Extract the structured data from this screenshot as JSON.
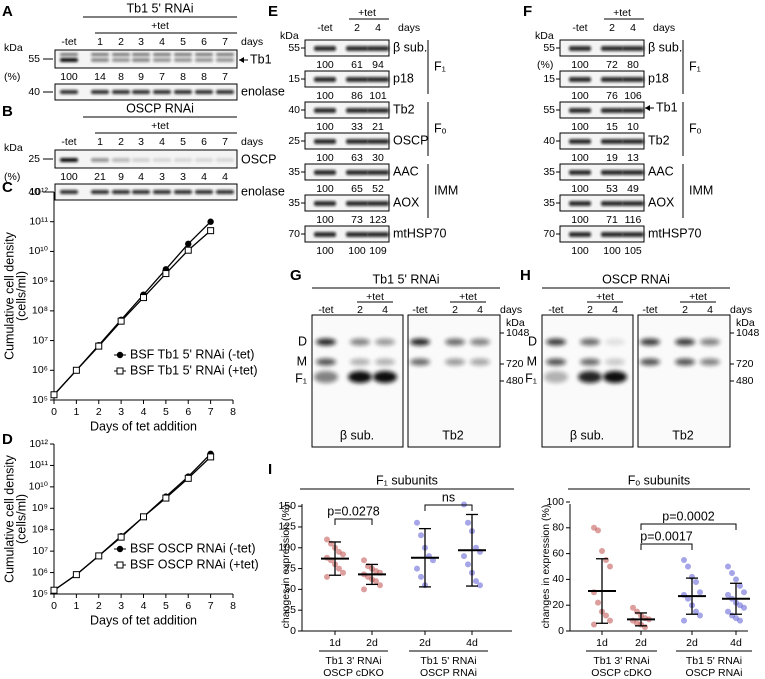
{
  "panel_a": {
    "letter": "A",
    "title": "Tb1 5' RNAi",
    "tet": "+tet",
    "lanes": [
      "-tet",
      "1",
      "2",
      "3",
      "4",
      "5",
      "6",
      "7"
    ],
    "days": "days",
    "kda": "kDa",
    "target": {
      "marker": "55",
      "label": "Tb1",
      "arrow": true
    },
    "pct_label": "(%)",
    "pct": [
      100,
      14,
      8,
      9,
      7,
      8,
      8,
      7
    ],
    "loading": {
      "marker": "40",
      "label": "enolase"
    }
  },
  "panel_b": {
    "letter": "B",
    "title": "OSCP RNAi",
    "tet": "+tet",
    "lanes": [
      "-tet",
      "1",
      "2",
      "3",
      "4",
      "5",
      "6",
      "7"
    ],
    "days": "days",
    "kda": "kDa",
    "target": {
      "marker": "25",
      "label": "OSCP",
      "arrow": false
    },
    "pct_label": "(%)",
    "pct": [
      100,
      21,
      9,
      4,
      3,
      3,
      4,
      4
    ],
    "loading": {
      "marker": "40",
      "label": "enolase"
    }
  },
  "panel_e": {
    "letter": "E",
    "tet": "+tet",
    "lanes": [
      "-tet",
      "2",
      "4"
    ],
    "days": "days",
    "kda": "kDa",
    "rows": [
      {
        "marker": "55",
        "label": "β sub.",
        "pct": [
          100,
          61,
          94
        ]
      },
      {
        "marker": "15",
        "label": "p18",
        "pct": [
          100,
          86,
          101
        ]
      },
      {
        "marker": "40",
        "label": "Tb2",
        "pct": [
          100,
          33,
          21
        ]
      },
      {
        "marker": "25",
        "label": "OSCP",
        "pct": [
          100,
          63,
          30
        ]
      },
      {
        "marker": "35",
        "label": "AAC",
        "pct": [
          100,
          65,
          52
        ]
      },
      {
        "marker": "35",
        "label": "AOX",
        "pct": [
          100,
          73,
          123
        ]
      },
      {
        "marker": "70",
        "label": "mtHSP70",
        "pct": [
          100,
          100,
          109
        ]
      }
    ],
    "groups": [
      "F₁",
      "Fₒ",
      "IMM"
    ]
  },
  "panel_f": {
    "letter": "F",
    "tet": "+tet",
    "lanes": [
      "-tet",
      "2",
      "4"
    ],
    "days": "days",
    "kda": "kDa",
    "pct_label": "(%)",
    "rows": [
      {
        "marker": "55",
        "label": "β sub.",
        "pct": [
          100,
          72,
          80
        ]
      },
      {
        "marker": "15",
        "label": "p18",
        "pct": [
          100,
          76,
          106
        ]
      },
      {
        "marker": "55",
        "label": "Tb1",
        "pct": [
          100,
          15,
          10
        ],
        "arrow": true
      },
      {
        "marker": "40",
        "label": "Tb2",
        "pct": [
          100,
          19,
          13
        ]
      },
      {
        "marker": "35",
        "label": "AAC",
        "pct": [
          100,
          53,
          49
        ]
      },
      {
        "marker": "35",
        "label": "AOX",
        "pct": [
          100,
          71,
          116
        ]
      },
      {
        "marker": "70",
        "label": "mtHSP70",
        "pct": [
          100,
          100,
          105
        ]
      }
    ],
    "groups": [
      "F₁",
      "Fₒ",
      "IMM"
    ]
  },
  "panel_g": {
    "letter": "G",
    "title": "Tb1 5' RNAi",
    "tet": [
      "+tet",
      "+tet"
    ],
    "lanes": [
      [
        "-tet",
        "2",
        "4"
      ],
      [
        "-tet",
        "2",
        "4"
      ]
    ],
    "days": "days",
    "kda": "kDa",
    "markers": [
      "1048",
      "720",
      "480"
    ],
    "complexes": [
      "D",
      "M",
      "F₁"
    ],
    "probes": [
      "β sub.",
      "Tb2"
    ]
  },
  "panel_h": {
    "letter": "H",
    "title": "OSCP RNAi",
    "tet": [
      "+tet",
      "+tet"
    ],
    "lanes": [
      [
        "-tet",
        "2",
        "4"
      ],
      [
        "-tet",
        "2",
        "4"
      ]
    ],
    "days": "days",
    "kda": "kDa",
    "markers": [
      "1048",
      "720",
      "480"
    ],
    "complexes": [
      "D",
      "M",
      "F₁"
    ],
    "probes": [
      "β sub.",
      "Tb2"
    ]
  },
  "chart_data": [
    {
      "type": "line",
      "letter": "C",
      "ylabel": [
        "Cumulative cell density",
        "(cells/ml)"
      ],
      "xlabel": "Days of tet addition",
      "x": [
        0,
        1,
        2,
        3,
        4,
        5,
        6,
        7
      ],
      "xlim": [
        0,
        8
      ],
      "xticks": [
        0,
        1,
        2,
        3,
        4,
        5,
        6,
        7,
        8
      ],
      "log_y": true,
      "ylim": [
        100000,
        1000000000000
      ],
      "yticks": [
        {
          "value": 100000,
          "label": "10⁵"
        },
        {
          "value": 1000000,
          "label": "10⁶"
        },
        {
          "value": 10000000,
          "label": "10⁷"
        },
        {
          "value": 100000000,
          "label": "10⁸"
        },
        {
          "value": 1000000000,
          "label": "10⁹"
        },
        {
          "value": 10000000000,
          "label": "10¹⁰"
        },
        {
          "value": 100000000000,
          "label": "10¹¹"
        },
        {
          "value": 1000000000000,
          "label": "10¹²"
        }
      ],
      "legend": "lower right",
      "series": [
        {
          "name": "BSF Tb1 5' RNAi (-tet)",
          "color": "#000000",
          "marker": "filled-circle",
          "values": [
            150000,
            1000000,
            7000000,
            50000000,
            350000000,
            2500000000,
            18000000000,
            100000000000
          ]
        },
        {
          "name": "BSF Tb1 5' RNAi (+tet)",
          "color": "#000000",
          "marker": "open-square",
          "values": [
            150000,
            1000000,
            6500000,
            45000000,
            280000000,
            1800000000,
            11000000000,
            50000000000
          ]
        }
      ]
    },
    {
      "type": "line",
      "letter": "D",
      "ylabel": [
        "Cumulative cell density",
        "(cells/ml)"
      ],
      "xlabel": "Days of tet addition",
      "x": [
        0,
        1,
        2,
        3,
        4,
        5,
        6,
        7
      ],
      "xlim": [
        0,
        8
      ],
      "xticks": [
        0,
        1,
        2,
        3,
        4,
        5,
        6,
        7,
        8
      ],
      "log_y": true,
      "ylim": [
        100000,
        1000000000000
      ],
      "yticks": [
        {
          "value": 100000,
          "label": "10⁵"
        },
        {
          "value": 1000000,
          "label": "10⁶"
        },
        {
          "value": 10000000,
          "label": "10⁷"
        },
        {
          "value": 100000000,
          "label": "10⁸"
        },
        {
          "value": 1000000000,
          "label": "10⁹"
        },
        {
          "value": 10000000000,
          "label": "10¹⁰"
        },
        {
          "value": 100000000000,
          "label": "10¹¹"
        },
        {
          "value": 1000000000000,
          "label": "10¹²"
        }
      ],
      "legend": "lower right",
      "series": [
        {
          "name": "BSF OSCP RNAi (-tet)",
          "color": "#000000",
          "marker": "filled-circle",
          "values": [
            150000,
            800000,
            6000000,
            50000000,
            400000000,
            3500000000,
            30000000000,
            350000000000
          ]
        },
        {
          "name": "BSF OSCP RNAi (+tet)",
          "color": "#000000",
          "marker": "open-square",
          "values": [
            150000,
            800000,
            6000000,
            45000000,
            400000000,
            3000000000,
            25000000000,
            250000000000
          ]
        }
      ]
    },
    {
      "type": "dot",
      "letter": "I",
      "title": "F₁ subunits",
      "ylabel": "changes in expression (%)",
      "categories": [
        "1d",
        "2d",
        "2d",
        "4d"
      ],
      "colors": [
        "#c0504d",
        "#c0504d",
        "#5b5bd6",
        "#5b5bd6"
      ],
      "points": [
        [
          110,
          105,
          100,
          95,
          92,
          88,
          85,
          80,
          75,
          70,
          65
        ],
        [
          85,
          78,
          75,
          72,
          70,
          68,
          65,
          62,
          60,
          55,
          50
        ],
        [
          130,
          115,
          100,
          90,
          85,
          75,
          65,
          55
        ],
        [
          152,
          130,
          120,
          100,
          95,
          90,
          80,
          70,
          60,
          55
        ]
      ],
      "means": [
        87,
        68,
        88,
        97
      ],
      "errors": [
        20,
        12,
        35,
        43
      ],
      "ylim": [
        0,
        155
      ],
      "yticks": [
        0,
        25,
        50,
        75,
        100,
        125,
        150
      ],
      "annotations": [
        "p=0.0278",
        "ns"
      ],
      "groups": [
        {
          "lines": [
            "Tb1 3' RNAi",
            "OSCP cDKO"
          ],
          "color": "#c0504d"
        },
        {
          "lines": [
            "Tb1 5' RNAi",
            "OSCP RNAi"
          ],
          "color": "#4040c8"
        }
      ]
    },
    {
      "type": "dot",
      "title": "Fₒ subunits",
      "ylabel": "changes in expression (%)",
      "categories": [
        "1d",
        "2d",
        "2d",
        "4d"
      ],
      "colors": [
        "#c0504d",
        "#c0504d",
        "#5b5bd6",
        "#5b5bd6"
      ],
      "points": [
        [
          80,
          78,
          62,
          55,
          50,
          30,
          22,
          15,
          12,
          8,
          5
        ],
        [
          18,
          15,
          12,
          10,
          9,
          8,
          6,
          5,
          3
        ],
        [
          55,
          50,
          42,
          38,
          30,
          28,
          25,
          20,
          15,
          12,
          8
        ],
        [
          50,
          45,
          40,
          35,
          30,
          28,
          25,
          22,
          20,
          18,
          15,
          12,
          10,
          8
        ]
      ],
      "means": [
        31,
        9,
        27,
        25
      ],
      "errors": [
        25,
        5,
        14,
        12
      ],
      "ylim": [
        0,
        100
      ],
      "yticks": [
        0,
        20,
        40,
        60,
        80,
        100
      ],
      "annotations": [
        "p=0.0017",
        "p=0.0002"
      ],
      "groups": [
        {
          "lines": [
            "Tb1 3' RNAi",
            "OSCP cDKO"
          ],
          "color": "#c0504d"
        },
        {
          "lines": [
            "Tb1 5' RNAi",
            "OSCP RNAi"
          ],
          "color": "#4040c8"
        }
      ]
    }
  ]
}
